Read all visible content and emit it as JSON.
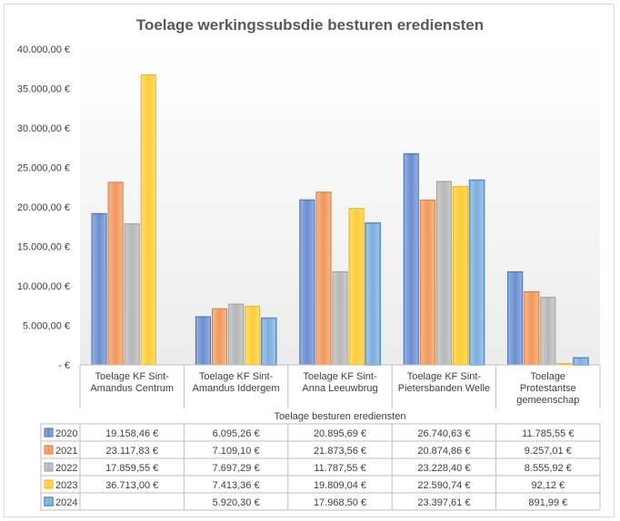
{
  "chart_data": {
    "type": "bar",
    "title": "Toelage werkingssubsdie besturen erediensten",
    "xlabel": "Toelage besturen erediensten",
    "ylabel": "",
    "ylim": [
      0,
      40000
    ],
    "ytick_labels": [
      "-  €",
      "5.000,00 €",
      "10.000,00 €",
      "15.000,00 €",
      "20.000,00 €",
      "25.000,00 €",
      "30.000,00 €",
      "35.000,00 €",
      "40.000,00 €"
    ],
    "categories": [
      [
        "Toelage KF Sint-",
        "Amandus Centrum"
      ],
      [
        "Toelage KF Sint-",
        "Amandus Iddergem"
      ],
      [
        "Toelage KF Sint-",
        "Anna Leeuwbrug"
      ],
      [
        "Toelage KF Sint-",
        "Pietersbanden Welle"
      ],
      [
        "Toelage",
        "Protestantse",
        "gemeenschap"
      ]
    ],
    "series": [
      {
        "name": "2020",
        "color": "#4472c4",
        "values": [
          19158.46,
          6095.26,
          20895.69,
          26740.63,
          11785.55
        ],
        "labels": [
          "19.158,46 €",
          "6.095,26 €",
          "20.895,69 €",
          "26.740,63 €",
          "11.785,55 €"
        ]
      },
      {
        "name": "2021",
        "color": "#ed7d31",
        "values": [
          23117.83,
          7109.1,
          21873.56,
          20874.86,
          9257.01
        ],
        "labels": [
          "23.117,83 €",
          "7.109,10 €",
          "21.873,56 €",
          "20.874,86 €",
          "9.257,01 €"
        ]
      },
      {
        "name": "2022",
        "color": "#a5a5a5",
        "values": [
          17859.55,
          7697.29,
          11787.55,
          23228.4,
          8555.92
        ],
        "labels": [
          "17.859,55 €",
          "7.697,29 €",
          "11.787,55 €",
          "23.228,40 €",
          "8.555,92 €"
        ]
      },
      {
        "name": "2023",
        "color": "#ffc000",
        "values": [
          36713.0,
          7413.36,
          19809.04,
          22590.74,
          92.12
        ],
        "labels": [
          "36.713,00 €",
          "7.413,36 €",
          "19.809,04 €",
          "22.590,74 €",
          "92,12 €"
        ]
      },
      {
        "name": "2024",
        "color": "#5b9bd5",
        "values": [
          null,
          5920.3,
          17968.5,
          23397.61,
          891.99
        ],
        "labels": [
          "",
          "5.920,30 €",
          "17.968,50 €",
          "23.397,61 €",
          "891,99 €"
        ]
      }
    ],
    "gridlines": false,
    "legend": "data-table"
  }
}
